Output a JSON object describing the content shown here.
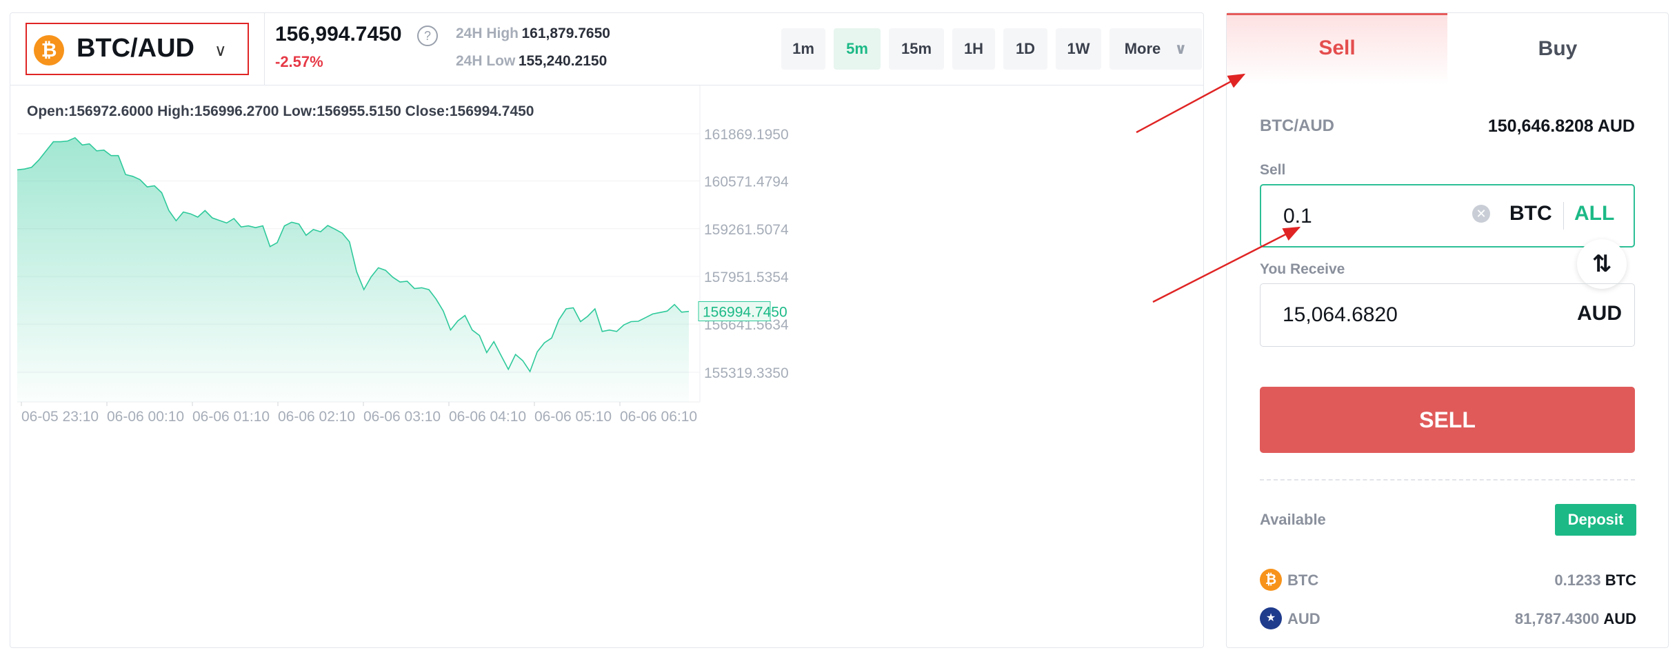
{
  "header": {
    "pair": "BTC/AUD",
    "coin_symbol": "₿",
    "price": "156,994.7450",
    "change": "-2.57%",
    "high_label": "24H High",
    "high_value": "161,879.7650",
    "low_label": "24H Low",
    "low_value": "155,240.2150",
    "timeframes": [
      "1m",
      "5m",
      "15m",
      "1H",
      "1D",
      "1W"
    ],
    "active_timeframe": "5m",
    "more_label": "More"
  },
  "ohlc": {
    "text": "Open:156972.6000  High:156996.2700  Low:156955.5150  Close:156994.7450"
  },
  "chart_data": {
    "type": "area",
    "x_ticks": [
      "06-05 23:10",
      "06-06 00:10",
      "06-06 01:10",
      "06-06 02:10",
      "06-06 03:10",
      "06-06 04:10",
      "06-06 05:10",
      "06-06 06:10"
    ],
    "y_ticks": [
      "161869.1950",
      "160571.4794",
      "159261.5074",
      "157951.5354",
      "156641.5634",
      "155319.3350"
    ],
    "ylim": [
      155319.335,
      161869.195
    ],
    "current_price_label": "156994.7450",
    "color": "#2ec99a",
    "series": [
      {
        "values": [
          160880,
          160900,
          160950,
          161150,
          161400,
          161650,
          161650,
          161670,
          161760,
          161560,
          161590,
          161400,
          161420,
          161270,
          161270,
          160750,
          160700,
          160610,
          160410,
          160440,
          160250,
          159760,
          159480,
          159720,
          159670,
          159580,
          159760,
          159560,
          159490,
          159420,
          159540,
          159310,
          159340,
          159290,
          159340,
          158770,
          158880,
          159340,
          159440,
          159390,
          159080,
          159240,
          159180,
          159350,
          159250,
          159140,
          158900,
          158080,
          157590,
          157940,
          158190,
          158120,
          157930,
          157800,
          157820,
          157620,
          157640,
          157590,
          157330,
          157000,
          156480,
          156730,
          156880,
          156480,
          156330,
          155860,
          156160,
          155780,
          155400,
          155810,
          155640,
          155340,
          155880,
          156130,
          156260,
          156760,
          157060,
          157090,
          156710,
          156860,
          157060,
          156440,
          156480,
          156440,
          156620,
          156710,
          156720,
          156820,
          156920,
          156960,
          157000,
          157180,
          156970,
          156990
        ]
      }
    ]
  },
  "trade": {
    "tab_sell": "Sell",
    "tab_buy": "Buy",
    "rate_pair": "BTC/AUD",
    "rate_value": "150,646.8208 AUD",
    "sell_label": "Sell",
    "sell_value": "0.1",
    "sell_currency": "BTC",
    "all_label": "ALL",
    "swap_icon": "swap-vertical-icon",
    "receive_label": "You Receive",
    "receive_value": "15,064.6820",
    "receive_currency": "AUD",
    "submit_label": "SELL",
    "available_label": "Available",
    "deposit_label": "Deposit",
    "balances": [
      {
        "name": "BTC",
        "amount": "0.1233",
        "unit": "BTC",
        "color": "#f7931a",
        "icon": "bitcoin-icon"
      },
      {
        "name": "AUD",
        "amount": "81,787.4300",
        "unit": "AUD",
        "color": "#1f3b8c",
        "icon": "australia-flag-icon"
      }
    ]
  },
  "colors": {
    "accent_green": "#1cb986",
    "sell_red": "#e05a5a",
    "highlight_red": "#e02424"
  }
}
